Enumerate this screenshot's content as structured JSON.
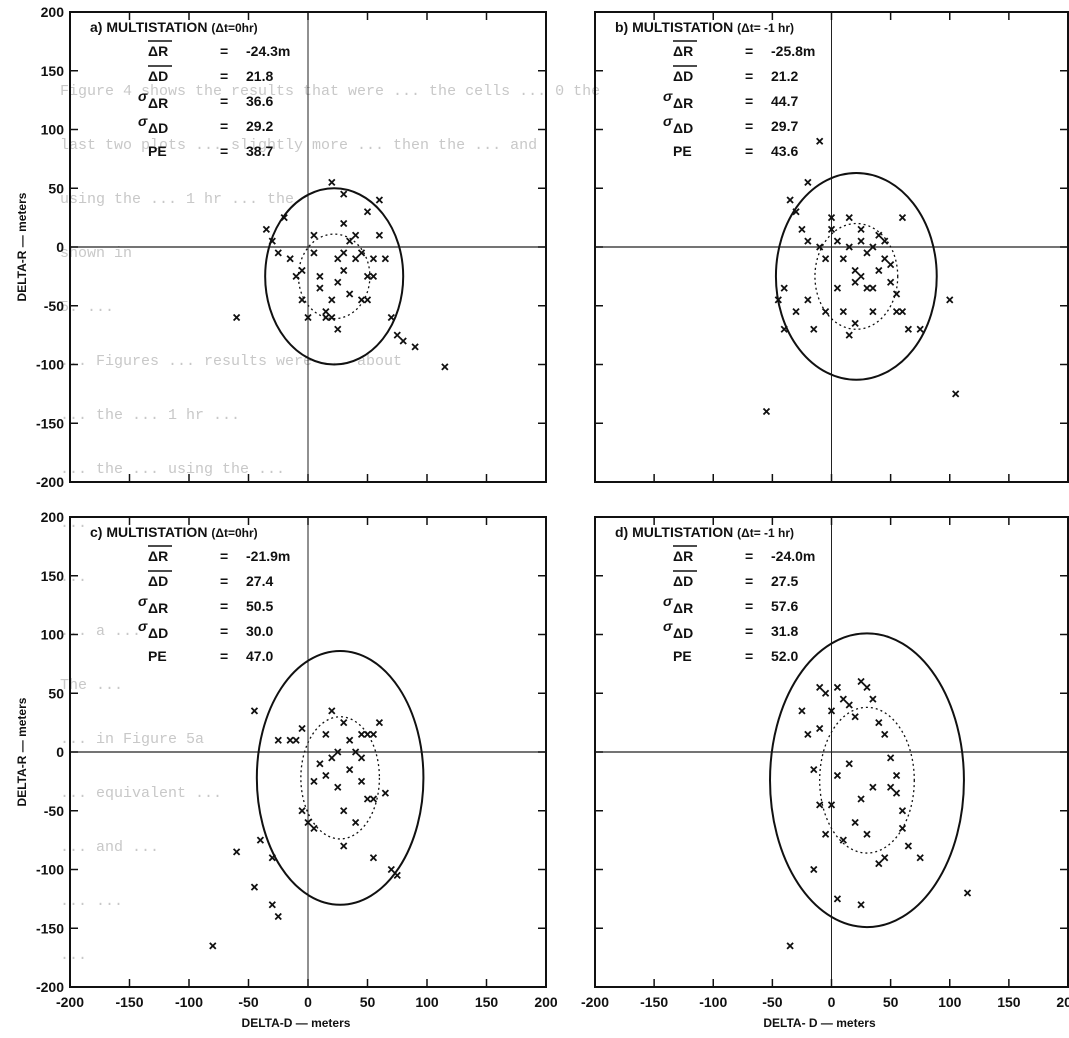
{
  "chart_data": [
    {
      "type": "scatter",
      "panel_label": "a)",
      "title": "MULTISTATION",
      "dt_label": "(Δt=0hr)",
      "xlabel": "",
      "ylabel": "DELTA-R — meters",
      "xlim": [
        -200,
        200
      ],
      "ylim": [
        -200,
        200
      ],
      "y_ticks": [
        "200",
        "150",
        "100",
        "50",
        "0",
        "-50",
        "-100",
        "-150",
        "-200"
      ],
      "x_ticks": [],
      "stats": [
        {
          "symbol": "ΔR",
          "style": "bar",
          "value": "-24.3m"
        },
        {
          "symbol": "ΔD",
          "style": "bar",
          "value": "21.8"
        },
        {
          "symbol": "ΔR",
          "style": "sigma",
          "value": "36.6"
        },
        {
          "symbol": "ΔD",
          "style": "sigma",
          "value": "29.2"
        },
        {
          "symbol": "PE",
          "style": "plain",
          "value": "38.7"
        }
      ],
      "ellipse_outer": {
        "cx": 22,
        "cy": -25,
        "rx": 58,
        "ry": 75
      },
      "ellipse_inner": {
        "cx": 22,
        "cy": -25,
        "rx": 30,
        "ry": 36
      },
      "points": [
        [
          -35,
          15
        ],
        [
          -30,
          5
        ],
        [
          -25,
          -5
        ],
        [
          -20,
          25
        ],
        [
          -15,
          -10
        ],
        [
          -10,
          -25
        ],
        [
          -5,
          -45
        ],
        [
          0,
          -60
        ],
        [
          -5,
          -20
        ],
        [
          5,
          -5
        ],
        [
          5,
          10
        ],
        [
          10,
          -25
        ],
        [
          10,
          -35
        ],
        [
          15,
          -55
        ],
        [
          15,
          -60
        ],
        [
          20,
          -60
        ],
        [
          20,
          -45
        ],
        [
          25,
          -10
        ],
        [
          25,
          -30
        ],
        [
          25,
          -70
        ],
        [
          30,
          -5
        ],
        [
          30,
          -20
        ],
        [
          30,
          20
        ],
        [
          35,
          -40
        ],
        [
          35,
          5
        ],
        [
          40,
          -10
        ],
        [
          40,
          10
        ],
        [
          45,
          -5
        ],
        [
          45,
          -45
        ],
        [
          50,
          -45
        ],
        [
          50,
          -25
        ],
        [
          50,
          30
        ],
        [
          55,
          -25
        ],
        [
          55,
          -10
        ],
        [
          60,
          40
        ],
        [
          60,
          10
        ],
        [
          65,
          -10
        ],
        [
          70,
          -60
        ],
        [
          75,
          -75
        ],
        [
          80,
          -80
        ],
        [
          90,
          -85
        ],
        [
          115,
          -102
        ],
        [
          -60,
          -60
        ],
        [
          20,
          55
        ],
        [
          30,
          45
        ]
      ]
    },
    {
      "type": "scatter",
      "panel_label": "b)",
      "title": "MULTISTATION",
      "dt_label": "(Δt= -1 hr)",
      "xlabel": "",
      "ylabel": "",
      "xlim": [
        -200,
        200
      ],
      "ylim": [
        -200,
        200
      ],
      "y_ticks": [],
      "x_ticks": [],
      "stats": [
        {
          "symbol": "ΔR",
          "style": "bar",
          "value": "-25.8m"
        },
        {
          "symbol": "ΔD",
          "style": "bar",
          "value": "21.2"
        },
        {
          "symbol": "ΔR",
          "style": "sigma",
          "value": "44.7"
        },
        {
          "symbol": "ΔD",
          "style": "sigma",
          "value": "29.7"
        },
        {
          "symbol": "PE",
          "style": "plain",
          "value": "43.6"
        }
      ],
      "ellipse_outer": {
        "cx": 21,
        "cy": -25,
        "rx": 68,
        "ry": 88
      },
      "ellipse_inner": {
        "cx": 21,
        "cy": -25,
        "rx": 35,
        "ry": 45
      },
      "points": [
        [
          -10,
          90
        ],
        [
          -20,
          55
        ],
        [
          -35,
          40
        ],
        [
          -30,
          30
        ],
        [
          -25,
          15
        ],
        [
          -20,
          5
        ],
        [
          -10,
          0
        ],
        [
          -5,
          -10
        ],
        [
          0,
          15
        ],
        [
          0,
          25
        ],
        [
          5,
          5
        ],
        [
          10,
          -10
        ],
        [
          15,
          25
        ],
        [
          15,
          0
        ],
        [
          20,
          -20
        ],
        [
          20,
          -30
        ],
        [
          25,
          15
        ],
        [
          25,
          5
        ],
        [
          25,
          -25
        ],
        [
          30,
          -5
        ],
        [
          30,
          -35
        ],
        [
          35,
          0
        ],
        [
          35,
          -35
        ],
        [
          35,
          -55
        ],
        [
          40,
          10
        ],
        [
          40,
          -20
        ],
        [
          45,
          5
        ],
        [
          45,
          -10
        ],
        [
          50,
          -15
        ],
        [
          50,
          -30
        ],
        [
          55,
          -40
        ],
        [
          55,
          -55
        ],
        [
          60,
          25
        ],
        [
          60,
          -55
        ],
        [
          65,
          -70
        ],
        [
          75,
          -70
        ],
        [
          -40,
          -35
        ],
        [
          -45,
          -45
        ],
        [
          -40,
          -70
        ],
        [
          -30,
          -55
        ],
        [
          -20,
          -45
        ],
        [
          -15,
          -70
        ],
        [
          -5,
          -55
        ],
        [
          5,
          -35
        ],
        [
          10,
          -55
        ],
        [
          15,
          -75
        ],
        [
          20,
          -65
        ],
        [
          100,
          -45
        ],
        [
          -55,
          -140
        ],
        [
          105,
          -125
        ]
      ]
    },
    {
      "type": "scatter",
      "panel_label": "c)",
      "title": "MULTISTATION",
      "dt_label": "(Δt=0hr)",
      "xlabel": "DELTA-D — meters",
      "ylabel": "DELTA-R — meters",
      "xlim": [
        -200,
        200
      ],
      "ylim": [
        -200,
        200
      ],
      "y_ticks": [
        "200",
        "150",
        "100",
        "50",
        "0",
        "-50",
        "-100",
        "-150",
        "-200"
      ],
      "x_ticks": [
        "-200",
        "-150",
        "-100",
        "-50",
        "0",
        "50",
        "100",
        "150",
        "200"
      ],
      "stats": [
        {
          "symbol": "ΔR",
          "style": "bar",
          "value": "-21.9m"
        },
        {
          "symbol": "ΔD",
          "style": "bar",
          "value": "27.4"
        },
        {
          "symbol": "ΔR",
          "style": "sigma",
          "value": "50.5"
        },
        {
          "symbol": "ΔD",
          "style": "sigma",
          "value": "30.0"
        },
        {
          "symbol": "PE",
          "style": "plain",
          "value": "47.0"
        }
      ],
      "ellipse_outer": {
        "cx": 27,
        "cy": -22,
        "rx": 70,
        "ry": 108
      },
      "ellipse_inner": {
        "cx": 27,
        "cy": -22,
        "rx": 33,
        "ry": 52
      },
      "points": [
        [
          -25,
          10
        ],
        [
          -15,
          10
        ],
        [
          -10,
          10
        ],
        [
          -5,
          20
        ],
        [
          -5,
          -50
        ],
        [
          0,
          -60
        ],
        [
          5,
          -65
        ],
        [
          5,
          -25
        ],
        [
          10,
          -10
        ],
        [
          15,
          15
        ],
        [
          15,
          -20
        ],
        [
          20,
          -5
        ],
        [
          20,
          35
        ],
        [
          25,
          -30
        ],
        [
          25,
          0
        ],
        [
          30,
          25
        ],
        [
          30,
          -50
        ],
        [
          30,
          -80
        ],
        [
          35,
          10
        ],
        [
          35,
          -15
        ],
        [
          40,
          0
        ],
        [
          40,
          -60
        ],
        [
          45,
          15
        ],
        [
          45,
          -5
        ],
        [
          45,
          -25
        ],
        [
          50,
          -40
        ],
        [
          50,
          15
        ],
        [
          55,
          15
        ],
        [
          55,
          -40
        ],
        [
          55,
          -90
        ],
        [
          60,
          25
        ],
        [
          65,
          -35
        ],
        [
          70,
          -100
        ],
        [
          75,
          -105
        ],
        [
          -45,
          35
        ],
        [
          -60,
          -85
        ],
        [
          -40,
          -75
        ],
        [
          -30,
          -90
        ],
        [
          -45,
          -115
        ],
        [
          -80,
          -165
        ],
        [
          -30,
          -130
        ],
        [
          -25,
          -140
        ]
      ]
    },
    {
      "type": "scatter",
      "panel_label": "d)",
      "title": "MULTISTATION",
      "dt_label": "(Δt= -1 hr)",
      "xlabel": "DELTA- D — meters",
      "ylabel": "",
      "xlim": [
        -200,
        200
      ],
      "ylim": [
        -200,
        200
      ],
      "y_ticks": [],
      "x_ticks": [
        "-200",
        "-150",
        "-100",
        "-50",
        "0",
        "50",
        "100",
        "150",
        "200"
      ],
      "stats": [
        {
          "symbol": "ΔR",
          "style": "bar",
          "value": "-24.0m"
        },
        {
          "symbol": "ΔD",
          "style": "bar",
          "value": "27.5"
        },
        {
          "symbol": "ΔR",
          "style": "sigma",
          "value": "57.6"
        },
        {
          "symbol": "ΔD",
          "style": "sigma",
          "value": "31.8"
        },
        {
          "symbol": "PE",
          "style": "plain",
          "value": "52.0"
        }
      ],
      "ellipse_outer": {
        "cx": 30,
        "cy": -24,
        "rx": 82,
        "ry": 125
      },
      "ellipse_inner": {
        "cx": 30,
        "cy": -24,
        "rx": 40,
        "ry": 62
      },
      "points": [
        [
          -10,
          55
        ],
        [
          -5,
          50
        ],
        [
          0,
          35
        ],
        [
          5,
          55
        ],
        [
          10,
          45
        ],
        [
          15,
          40
        ],
        [
          20,
          30
        ],
        [
          25,
          60
        ],
        [
          30,
          55
        ],
        [
          35,
          45
        ],
        [
          40,
          25
        ],
        [
          45,
          15
        ],
        [
          50,
          -5
        ],
        [
          55,
          -20
        ],
        [
          60,
          -50
        ],
        [
          60,
          -65
        ],
        [
          -20,
          15
        ],
        [
          -15,
          -15
        ],
        [
          -10,
          -45
        ],
        [
          -5,
          -70
        ],
        [
          0,
          -45
        ],
        [
          5,
          -20
        ],
        [
          10,
          -75
        ],
        [
          15,
          -10
        ],
        [
          20,
          -60
        ],
        [
          25,
          -40
        ],
        [
          30,
          -70
        ],
        [
          35,
          -30
        ],
        [
          40,
          -95
        ],
        [
          45,
          -90
        ],
        [
          50,
          -30
        ],
        [
          55,
          -35
        ],
        [
          65,
          -80
        ],
        [
          75,
          -90
        ],
        [
          -15,
          -100
        ],
        [
          5,
          -125
        ],
        [
          25,
          -130
        ],
        [
          -35,
          -165
        ],
        [
          115,
          -120
        ],
        [
          -25,
          35
        ],
        [
          -10,
          20
        ]
      ]
    }
  ],
  "background_text": [
    "Figure 4 shows the results that were ... the cells ... 0 the",
    "last two plots ... slightly more ... then the ... and",
    "using the ... 1 hr ... the",
    "shown in",
    "5.  ...",
    "... Figures ... results were ... about",
    "... the ... 1 hr ...",
    "... the ... using the ... ",
    "...",
    "...",
    "... a ... ",
    "The ...",
    "... in Figure 5a",
    "... equivalent ...",
    "... and ...",
    "... ...",
    "..."
  ]
}
